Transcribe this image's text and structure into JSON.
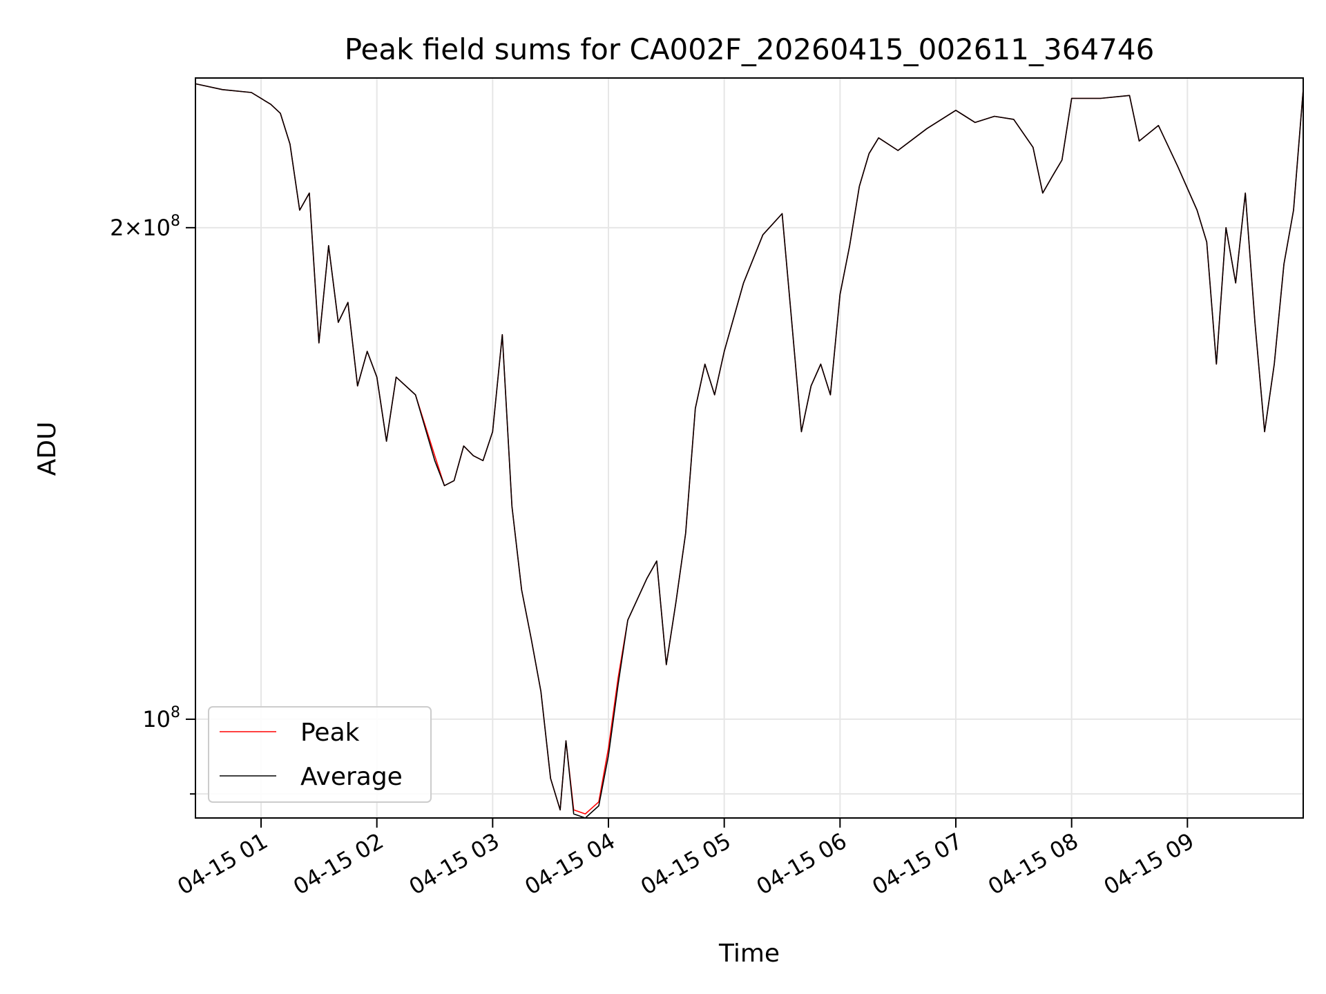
{
  "chart_data": {
    "type": "line",
    "title": "Peak field sums for CA002F_20260415_002611_364746",
    "xlabel": "Time",
    "ylabel": "ADU",
    "x_unit": "hours",
    "xlim": [
      "04-15 00:26",
      "04-15 10:00"
    ],
    "ylim": [
      87000000,
      247000000
    ],
    "yscale": "log",
    "grid": true,
    "legend_position": "lower-left",
    "x_ticks": [
      "04-15 01",
      "04-15 02",
      "04-15 03",
      "04-15 04",
      "04-15 05",
      "04-15 06",
      "04-15 07",
      "04-15 08",
      "04-15 09"
    ],
    "y_ticks": [
      {
        "value": 100000000,
        "label": "10^8",
        "major": true
      },
      {
        "value": 200000000,
        "label": "2×10^8",
        "major": true
      },
      {
        "value": 90000000,
        "major": false
      }
    ],
    "series": [
      {
        "name": "Peak",
        "color": "#ff0000",
        "points": [
          [
            "04-15 00:26",
            245000000
          ],
          [
            "04-15 00:40",
            243000000
          ],
          [
            "04-15 00:55",
            242000000
          ],
          [
            "04-15 01:05",
            238000000
          ],
          [
            "04-15 01:10",
            235000000
          ],
          [
            "04-15 01:15",
            225000000
          ],
          [
            "04-15 01:20",
            205000000
          ],
          [
            "04-15 01:25",
            210000000
          ],
          [
            "04-15 01:30",
            170000000
          ],
          [
            "04-15 01:35",
            195000000
          ],
          [
            "04-15 01:40",
            175000000
          ],
          [
            "04-15 01:45",
            180000000
          ],
          [
            "04-15 01:50",
            160000000
          ],
          [
            "04-15 01:55",
            168000000
          ],
          [
            "04-15 02:00",
            162000000
          ],
          [
            "04-15 02:05",
            148000000
          ],
          [
            "04-15 02:10",
            162000000
          ],
          [
            "04-15 02:20",
            158000000
          ],
          [
            "04-15 02:30",
            145000000
          ],
          [
            "04-15 02:35",
            139000000
          ],
          [
            "04-15 02:40",
            140000000
          ],
          [
            "04-15 02:45",
            147000000
          ],
          [
            "04-15 02:50",
            145000000
          ],
          [
            "04-15 02:55",
            144000000
          ],
          [
            "04-15 03:00",
            150000000
          ],
          [
            "04-15 03:05",
            172000000
          ],
          [
            "04-15 03:10",
            135000000
          ],
          [
            "04-15 03:15",
            120000000
          ],
          [
            "04-15 03:20",
            112000000
          ],
          [
            "04-15 03:25",
            104000000
          ],
          [
            "04-15 03:30",
            92000000
          ],
          [
            "04-15 03:35",
            88000000
          ],
          [
            "04-15 03:38",
            97000000
          ],
          [
            "04-15 03:42",
            88000000
          ],
          [
            "04-15 03:48",
            87500000
          ],
          [
            "04-15 03:55",
            89000000
          ],
          [
            "04-15 04:00",
            96000000
          ],
          [
            "04-15 04:05",
            106000000
          ],
          [
            "04-15 04:10",
            115000000
          ],
          [
            "04-15 04:20",
            122000000
          ],
          [
            "04-15 04:25",
            125000000
          ],
          [
            "04-15 04:30",
            108000000
          ],
          [
            "04-15 04:35",
            118000000
          ],
          [
            "04-15 04:40",
            130000000
          ],
          [
            "04-15 04:45",
            155000000
          ],
          [
            "04-15 04:50",
            165000000
          ],
          [
            "04-15 04:55",
            158000000
          ],
          [
            "04-15 05:00",
            168000000
          ],
          [
            "04-15 05:10",
            185000000
          ],
          [
            "04-15 05:20",
            198000000
          ],
          [
            "04-15 05:30",
            204000000
          ],
          [
            "04-15 05:35",
            175000000
          ],
          [
            "04-15 05:40",
            150000000
          ],
          [
            "04-15 05:45",
            160000000
          ],
          [
            "04-15 05:50",
            165000000
          ],
          [
            "04-15 05:55",
            158000000
          ],
          [
            "04-15 06:00",
            182000000
          ],
          [
            "04-15 06:05",
            195000000
          ],
          [
            "04-15 06:10",
            212000000
          ],
          [
            "04-15 06:15",
            222000000
          ],
          [
            "04-15 06:20",
            227000000
          ],
          [
            "04-15 06:30",
            223000000
          ],
          [
            "04-15 06:45",
            230000000
          ],
          [
            "04-15 07:00",
            236000000
          ],
          [
            "04-15 07:10",
            232000000
          ],
          [
            "04-15 07:20",
            234000000
          ],
          [
            "04-15 07:30",
            233000000
          ],
          [
            "04-15 07:40",
            224000000
          ],
          [
            "04-15 07:45",
            210000000
          ],
          [
            "04-15 07:50",
            215000000
          ],
          [
            "04-15 07:55",
            220000000
          ],
          [
            "04-15 08:00",
            240000000
          ],
          [
            "04-15 08:15",
            240000000
          ],
          [
            "04-15 08:30",
            241000000
          ],
          [
            "04-15 08:35",
            226000000
          ],
          [
            "04-15 08:45",
            231000000
          ],
          [
            "04-15 08:55",
            218000000
          ],
          [
            "04-15 09:05",
            205000000
          ],
          [
            "04-15 09:10",
            196000000
          ],
          [
            "04-15 09:15",
            165000000
          ],
          [
            "04-15 09:20",
            200000000
          ],
          [
            "04-15 09:25",
            185000000
          ],
          [
            "04-15 09:30",
            210000000
          ],
          [
            "04-15 09:35",
            175000000
          ],
          [
            "04-15 09:40",
            150000000
          ],
          [
            "04-15 09:45",
            165000000
          ],
          [
            "04-15 09:50",
            190000000
          ],
          [
            "04-15 09:55",
            205000000
          ],
          [
            "04-15 10:00",
            243000000
          ]
        ]
      },
      {
        "name": "Average",
        "color": "#000000",
        "points": [
          [
            "04-15 00:26",
            245000000
          ],
          [
            "04-15 00:40",
            243000000
          ],
          [
            "04-15 00:55",
            242000000
          ],
          [
            "04-15 01:05",
            238000000
          ],
          [
            "04-15 01:10",
            235000000
          ],
          [
            "04-15 01:15",
            225000000
          ],
          [
            "04-15 01:20",
            205000000
          ],
          [
            "04-15 01:25",
            210000000
          ],
          [
            "04-15 01:30",
            170000000
          ],
          [
            "04-15 01:35",
            195000000
          ],
          [
            "04-15 01:40",
            175000000
          ],
          [
            "04-15 01:45",
            180000000
          ],
          [
            "04-15 01:50",
            160000000
          ],
          [
            "04-15 01:55",
            168000000
          ],
          [
            "04-15 02:00",
            162000000
          ],
          [
            "04-15 02:05",
            148000000
          ],
          [
            "04-15 02:10",
            162000000
          ],
          [
            "04-15 02:20",
            158000000
          ],
          [
            "04-15 02:30",
            144000000
          ],
          [
            "04-15 02:35",
            139000000
          ],
          [
            "04-15 02:40",
            140000000
          ],
          [
            "04-15 02:45",
            147000000
          ],
          [
            "04-15 02:50",
            145000000
          ],
          [
            "04-15 02:55",
            144000000
          ],
          [
            "04-15 03:00",
            150000000
          ],
          [
            "04-15 03:05",
            172000000
          ],
          [
            "04-15 03:10",
            135000000
          ],
          [
            "04-15 03:15",
            120000000
          ],
          [
            "04-15 03:20",
            112000000
          ],
          [
            "04-15 03:25",
            104000000
          ],
          [
            "04-15 03:30",
            92000000
          ],
          [
            "04-15 03:35",
            88000000
          ],
          [
            "04-15 03:38",
            97000000
          ],
          [
            "04-15 03:42",
            87500000
          ],
          [
            "04-15 03:48",
            87000000
          ],
          [
            "04-15 03:55",
            88500000
          ],
          [
            "04-15 04:00",
            95000000
          ],
          [
            "04-15 04:05",
            105000000
          ],
          [
            "04-15 04:10",
            115000000
          ],
          [
            "04-15 04:20",
            122000000
          ],
          [
            "04-15 04:25",
            125000000
          ],
          [
            "04-15 04:30",
            108000000
          ],
          [
            "04-15 04:35",
            118000000
          ],
          [
            "04-15 04:40",
            130000000
          ],
          [
            "04-15 04:45",
            155000000
          ],
          [
            "04-15 04:50",
            165000000
          ],
          [
            "04-15 04:55",
            158000000
          ],
          [
            "04-15 05:00",
            168000000
          ],
          [
            "04-15 05:10",
            185000000
          ],
          [
            "04-15 05:20",
            198000000
          ],
          [
            "04-15 05:30",
            204000000
          ],
          [
            "04-15 05:35",
            175000000
          ],
          [
            "04-15 05:40",
            150000000
          ],
          [
            "04-15 05:45",
            160000000
          ],
          [
            "04-15 05:50",
            165000000
          ],
          [
            "04-15 05:55",
            158000000
          ],
          [
            "04-15 06:00",
            182000000
          ],
          [
            "04-15 06:05",
            195000000
          ],
          [
            "04-15 06:10",
            212000000
          ],
          [
            "04-15 06:15",
            222000000
          ],
          [
            "04-15 06:20",
            227000000
          ],
          [
            "04-15 06:30",
            223000000
          ],
          [
            "04-15 06:45",
            230000000
          ],
          [
            "04-15 07:00",
            236000000
          ],
          [
            "04-15 07:10",
            232000000
          ],
          [
            "04-15 07:20",
            234000000
          ],
          [
            "04-15 07:30",
            233000000
          ],
          [
            "04-15 07:40",
            224000000
          ],
          [
            "04-15 07:45",
            210000000
          ],
          [
            "04-15 07:50",
            215000000
          ],
          [
            "04-15 07:55",
            220000000
          ],
          [
            "04-15 08:00",
            240000000
          ],
          [
            "04-15 08:15",
            240000000
          ],
          [
            "04-15 08:30",
            241000000
          ],
          [
            "04-15 08:35",
            226000000
          ],
          [
            "04-15 08:45",
            231000000
          ],
          [
            "04-15 08:55",
            218000000
          ],
          [
            "04-15 09:05",
            205000000
          ],
          [
            "04-15 09:10",
            196000000
          ],
          [
            "04-15 09:15",
            165000000
          ],
          [
            "04-15 09:20",
            200000000
          ],
          [
            "04-15 09:25",
            185000000
          ],
          [
            "04-15 09:30",
            210000000
          ],
          [
            "04-15 09:35",
            175000000
          ],
          [
            "04-15 09:40",
            150000000
          ],
          [
            "04-15 09:45",
            165000000
          ],
          [
            "04-15 09:50",
            190000000
          ],
          [
            "04-15 09:55",
            205000000
          ],
          [
            "04-15 10:00",
            243000000
          ]
        ]
      }
    ]
  }
}
